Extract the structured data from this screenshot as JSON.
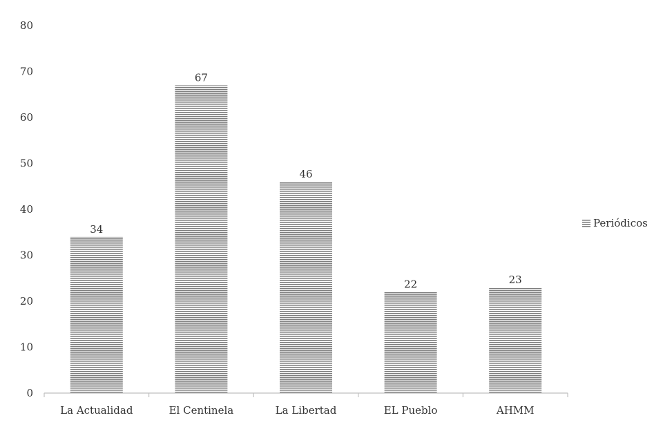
{
  "chart_data": {
    "type": "bar",
    "categories": [
      "La Actualidad",
      "El Centinela",
      "La Libertad",
      "EL Pueblo",
      "AHMM"
    ],
    "series": [
      {
        "name": "Periódicos",
        "values": [
          34,
          67,
          46,
          22,
          23
        ]
      }
    ],
    "ylim": [
      0,
      80
    ],
    "yticks": [
      0,
      10,
      20,
      30,
      40,
      50,
      60,
      70,
      80
    ],
    "grid": false,
    "legend": "right",
    "bar_color": "#7f7f7f",
    "bar_pattern": "horizontal-lines"
  }
}
